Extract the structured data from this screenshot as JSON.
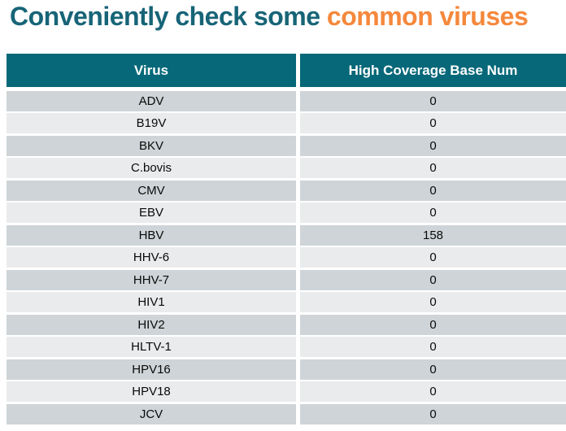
{
  "title": {
    "part1": "Conveniently check some",
    "part2": "common viruses"
  },
  "colors": {
    "title_teal": "#176477",
    "title_orange": "#F5883C",
    "header_bg": "#066879",
    "row_dark": "#CED4D7",
    "row_light": "#E9EBEC"
  },
  "table": {
    "columns": [
      "Virus",
      "High Coverage Base Num"
    ],
    "rows": [
      {
        "virus": "ADV",
        "value": "0"
      },
      {
        "virus": "B19V",
        "value": "0"
      },
      {
        "virus": "BKV",
        "value": "0"
      },
      {
        "virus": "C.bovis",
        "value": "0"
      },
      {
        "virus": "CMV",
        "value": "0"
      },
      {
        "virus": "EBV",
        "value": "0"
      },
      {
        "virus": "HBV",
        "value": "158"
      },
      {
        "virus": "HHV-6",
        "value": "0"
      },
      {
        "virus": "HHV-7",
        "value": "0"
      },
      {
        "virus": "HIV1",
        "value": "0"
      },
      {
        "virus": "HIV2",
        "value": "0"
      },
      {
        "virus": "HLTV-1",
        "value": "0"
      },
      {
        "virus": "HPV16",
        "value": "0"
      },
      {
        "virus": "HPV18",
        "value": "0"
      },
      {
        "virus": "JCV",
        "value": "0"
      }
    ]
  }
}
